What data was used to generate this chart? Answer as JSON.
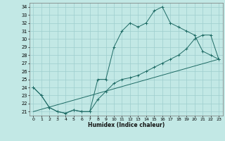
{
  "xlabel": "Humidex (Indice chaleur)",
  "background_color": "#c2e8e5",
  "grid_color": "#9ecece",
  "line_color": "#1e6b65",
  "xlim": [
    -0.5,
    23.5
  ],
  "ylim": [
    20.5,
    34.5
  ],
  "xticks": [
    0,
    1,
    2,
    3,
    4,
    5,
    6,
    7,
    8,
    9,
    10,
    11,
    12,
    13,
    14,
    15,
    16,
    17,
    18,
    19,
    20,
    21,
    22,
    23
  ],
  "yticks": [
    21,
    22,
    23,
    24,
    25,
    26,
    27,
    28,
    29,
    30,
    31,
    32,
    33,
    34
  ],
  "line1_x": [
    0,
    1,
    2,
    3,
    4,
    5,
    6,
    7,
    8,
    9,
    10,
    11,
    12,
    13,
    14,
    15,
    16,
    17,
    18,
    19,
    20,
    21,
    22,
    23
  ],
  "line1_y": [
    24,
    23,
    21.5,
    21,
    20.8,
    21.2,
    21,
    21,
    25,
    25,
    29,
    31,
    32,
    31.5,
    32,
    33.5,
    34,
    32,
    31.5,
    31,
    30.5,
    28.5,
    28,
    27.5
  ],
  "line2_x": [
    0,
    1,
    2,
    3,
    4,
    5,
    6,
    7,
    8,
    9,
    10,
    11,
    12,
    13,
    14,
    15,
    16,
    17,
    18,
    19,
    20,
    21,
    22,
    23
  ],
  "line2_y": [
    24,
    23,
    21.5,
    21,
    20.8,
    21.2,
    21,
    21,
    22.5,
    23.5,
    24.5,
    25,
    25.2,
    25.5,
    26,
    26.5,
    27,
    27.5,
    28,
    28.8,
    30,
    30.5,
    30.5,
    27.5
  ],
  "line3_x": [
    0,
    23
  ],
  "line3_y": [
    21,
    27.5
  ]
}
